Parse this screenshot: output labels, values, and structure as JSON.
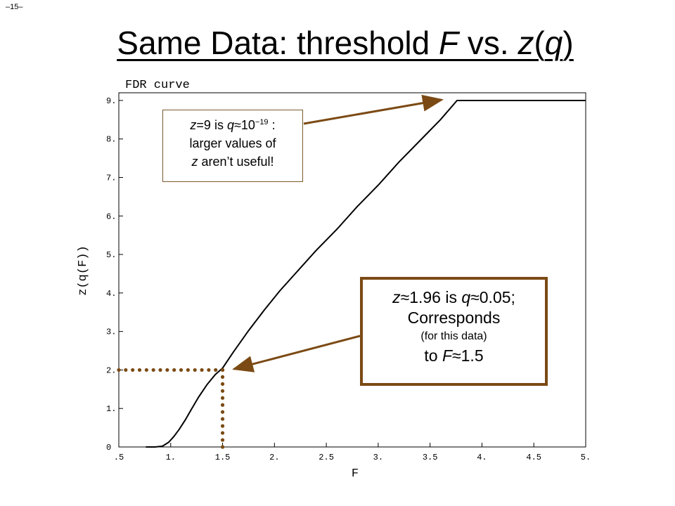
{
  "page_number": "–15–",
  "slide_title": {
    "part1": "Same Data: threshold ",
    "F": "F",
    "part2": " vs. ",
    "z": "z",
    "open": "(",
    "q": "q",
    "close": ")"
  },
  "callout_top": {
    "z": "z",
    "eq9": "=9 is ",
    "q": "q",
    "approx": "≈",
    "base": "10",
    "exp": "−19",
    "colon": " :",
    "line2": "larger values of",
    "z2": "z",
    "line3": " aren’t useful!"
  },
  "callout_bottom": {
    "z": "z",
    "approx1": "≈",
    "zval": "1.96 is ",
    "q": "q",
    "approx2": "≈",
    "qval": "0.05;",
    "line2": "Corresponds",
    "line3": "(for this data)",
    "to": "to ",
    "F": "F",
    "approx3": "≈",
    "fval": "1.5"
  },
  "colors": {
    "curve": "#000000",
    "annotation": "#7b4a14",
    "dots": "#7b4a14"
  },
  "chart_data": {
    "type": "line",
    "title": "FDR curve",
    "xlabel": "F",
    "ylabel": "z(q(F))",
    "xlim": [
      0.5,
      5.0
    ],
    "ylim": [
      0,
      9.2
    ],
    "x_ticks": [
      ".5",
      "1.",
      "1.5",
      "2.",
      "2.5",
      "3.",
      "3.5",
      "4.",
      "4.5",
      "5."
    ],
    "y_ticks": [
      "0",
      "1.",
      "2.",
      "3.",
      "4.",
      "5.",
      "6.",
      "7.",
      "8.",
      "9."
    ],
    "grid": false,
    "series": [
      {
        "x": [
          0.76,
          0.85,
          0.92,
          0.98,
          1.03,
          1.08,
          1.14,
          1.2,
          1.27,
          1.35,
          1.43,
          1.5,
          1.6,
          1.75,
          1.9,
          2.05,
          2.2,
          2.4,
          2.6,
          2.8,
          3.0,
          3.2,
          3.4,
          3.6,
          3.76,
          4.0,
          4.5,
          5.0
        ],
        "y": [
          0,
          0,
          0.02,
          0.12,
          0.27,
          0.45,
          0.7,
          0.98,
          1.3,
          1.62,
          1.88,
          2.05,
          2.45,
          3.02,
          3.55,
          4.05,
          4.5,
          5.1,
          5.65,
          6.25,
          6.8,
          7.4,
          7.95,
          8.5,
          9.0,
          9.0,
          9.0,
          9.0
        ]
      }
    ],
    "annotations": [
      {
        "type": "dotted-line",
        "from": [
          0.5,
          2.0
        ],
        "to": [
          1.5,
          2.0
        ]
      },
      {
        "type": "dotted-line",
        "from": [
          1.5,
          2.0
        ],
        "to": [
          1.5,
          0.0
        ]
      }
    ]
  }
}
